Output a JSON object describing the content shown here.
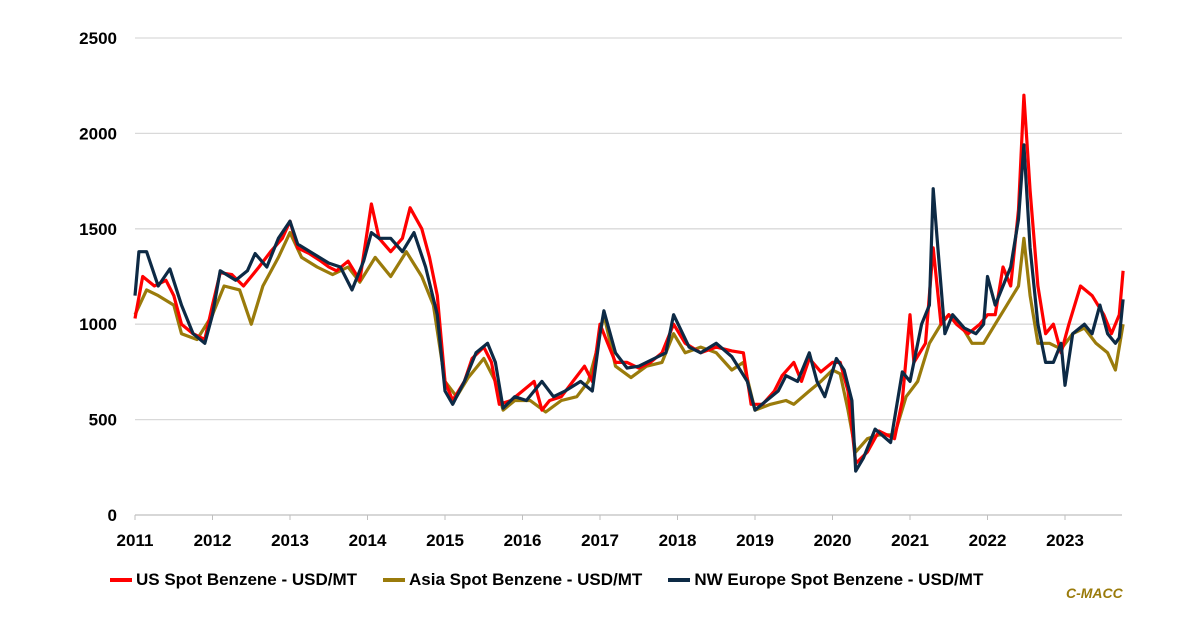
{
  "chart_data": {
    "type": "line",
    "title": "",
    "xlabel": "",
    "ylabel": "",
    "ylim": [
      0,
      2500
    ],
    "yticks": [
      0,
      500,
      1000,
      1500,
      2000,
      2500
    ],
    "xticks": [
      2011,
      2012,
      2013,
      2014,
      2015,
      2016,
      2017,
      2018,
      2019,
      2020,
      2021,
      2022,
      2023
    ],
    "grid": true,
    "legend_position": "bottom",
    "series": [
      {
        "name": "US Spot Benzene - USD/MT",
        "color": "#ff0000",
        "points": [
          [
            2011.0,
            1030
          ],
          [
            2011.1,
            1250
          ],
          [
            2011.25,
            1200
          ],
          [
            2011.4,
            1230
          ],
          [
            2011.5,
            1150
          ],
          [
            2011.6,
            1000
          ],
          [
            2011.75,
            950
          ],
          [
            2011.9,
            920
          ],
          [
            2012.0,
            1100
          ],
          [
            2012.1,
            1270
          ],
          [
            2012.25,
            1260
          ],
          [
            2012.4,
            1200
          ],
          [
            2012.5,
            1250
          ],
          [
            2012.6,
            1300
          ],
          [
            2012.75,
            1380
          ],
          [
            2012.9,
            1450
          ],
          [
            2013.0,
            1540
          ],
          [
            2013.1,
            1400
          ],
          [
            2013.25,
            1370
          ],
          [
            2013.4,
            1330
          ],
          [
            2013.5,
            1300
          ],
          [
            2013.6,
            1280
          ],
          [
            2013.75,
            1330
          ],
          [
            2013.9,
            1230
          ],
          [
            2014.05,
            1630
          ],
          [
            2014.15,
            1450
          ],
          [
            2014.3,
            1380
          ],
          [
            2014.45,
            1450
          ],
          [
            2014.55,
            1610
          ],
          [
            2014.7,
            1500
          ],
          [
            2014.8,
            1350
          ],
          [
            2014.9,
            1150
          ],
          [
            2015.0,
            700
          ],
          [
            2015.1,
            600
          ],
          [
            2015.25,
            700
          ],
          [
            2015.35,
            820
          ],
          [
            2015.5,
            880
          ],
          [
            2015.6,
            800
          ],
          [
            2015.7,
            580
          ],
          [
            2015.85,
            600
          ],
          [
            2016.0,
            650
          ],
          [
            2016.15,
            700
          ],
          [
            2016.25,
            550
          ],
          [
            2016.35,
            600
          ],
          [
            2016.5,
            620
          ],
          [
            2016.65,
            700
          ],
          [
            2016.8,
            780
          ],
          [
            2016.9,
            700
          ],
          [
            2017.0,
            1000
          ],
          [
            2017.1,
            900
          ],
          [
            2017.2,
            800
          ],
          [
            2017.35,
            800
          ],
          [
            2017.5,
            770
          ],
          [
            2017.65,
            800
          ],
          [
            2017.8,
            850
          ],
          [
            2017.95,
            1000
          ],
          [
            2018.1,
            900
          ],
          [
            2018.3,
            850
          ],
          [
            2018.5,
            880
          ],
          [
            2018.7,
            860
          ],
          [
            2018.85,
            850
          ],
          [
            2018.95,
            580
          ],
          [
            2019.1,
            580
          ],
          [
            2019.25,
            650
          ],
          [
            2019.35,
            730
          ],
          [
            2019.5,
            800
          ],
          [
            2019.6,
            700
          ],
          [
            2019.7,
            820
          ],
          [
            2019.85,
            750
          ],
          [
            2020.0,
            800
          ],
          [
            2020.1,
            800
          ],
          [
            2020.2,
            650
          ],
          [
            2020.3,
            270
          ],
          [
            2020.45,
            330
          ],
          [
            2020.6,
            440
          ],
          [
            2020.8,
            400
          ],
          [
            2020.9,
            600
          ],
          [
            2021.0,
            1050
          ],
          [
            2021.05,
            800
          ],
          [
            2021.2,
            900
          ],
          [
            2021.3,
            1400
          ],
          [
            2021.4,
            1000
          ],
          [
            2021.5,
            1050
          ],
          [
            2021.6,
            1000
          ],
          [
            2021.75,
            950
          ],
          [
            2021.9,
            1000
          ],
          [
            2022.0,
            1050
          ],
          [
            2022.1,
            1050
          ],
          [
            2022.2,
            1300
          ],
          [
            2022.3,
            1200
          ],
          [
            2022.4,
            1600
          ],
          [
            2022.47,
            2200
          ],
          [
            2022.55,
            1700
          ],
          [
            2022.65,
            1200
          ],
          [
            2022.75,
            950
          ],
          [
            2022.85,
            1000
          ],
          [
            2022.95,
            850
          ],
          [
            2023.05,
            1000
          ],
          [
            2023.2,
            1200
          ],
          [
            2023.35,
            1150
          ],
          [
            2023.5,
            1050
          ],
          [
            2023.6,
            950
          ],
          [
            2023.7,
            1050
          ],
          [
            2023.75,
            1280
          ]
        ]
      },
      {
        "name": "Asia Spot Benzene - USD/MT",
        "color": "#9a7b0b",
        "points": [
          [
            2011.0,
            1050
          ],
          [
            2011.15,
            1180
          ],
          [
            2011.3,
            1150
          ],
          [
            2011.5,
            1100
          ],
          [
            2011.6,
            950
          ],
          [
            2011.8,
            920
          ],
          [
            2012.0,
            1050
          ],
          [
            2012.15,
            1200
          ],
          [
            2012.35,
            1180
          ],
          [
            2012.5,
            1000
          ],
          [
            2012.65,
            1200
          ],
          [
            2012.85,
            1350
          ],
          [
            2013.0,
            1480
          ],
          [
            2013.15,
            1350
          ],
          [
            2013.35,
            1300
          ],
          [
            2013.55,
            1260
          ],
          [
            2013.75,
            1300
          ],
          [
            2013.9,
            1220
          ],
          [
            2014.1,
            1350
          ],
          [
            2014.3,
            1250
          ],
          [
            2014.5,
            1380
          ],
          [
            2014.7,
            1250
          ],
          [
            2014.85,
            1100
          ],
          [
            2015.0,
            700
          ],
          [
            2015.15,
            620
          ],
          [
            2015.3,
            720
          ],
          [
            2015.5,
            820
          ],
          [
            2015.65,
            700
          ],
          [
            2015.75,
            550
          ],
          [
            2015.9,
            600
          ],
          [
            2016.1,
            600
          ],
          [
            2016.3,
            540
          ],
          [
            2016.5,
            600
          ],
          [
            2016.7,
            620
          ],
          [
            2016.85,
            700
          ],
          [
            2016.95,
            850
          ],
          [
            2017.05,
            1050
          ],
          [
            2017.2,
            780
          ],
          [
            2017.4,
            720
          ],
          [
            2017.6,
            780
          ],
          [
            2017.8,
            800
          ],
          [
            2017.95,
            950
          ],
          [
            2018.1,
            850
          ],
          [
            2018.3,
            880
          ],
          [
            2018.5,
            850
          ],
          [
            2018.7,
            760
          ],
          [
            2018.85,
            800
          ],
          [
            2019.0,
            550
          ],
          [
            2019.2,
            580
          ],
          [
            2019.4,
            600
          ],
          [
            2019.5,
            580
          ],
          [
            2019.7,
            650
          ],
          [
            2019.85,
            700
          ],
          [
            2020.0,
            760
          ],
          [
            2020.1,
            740
          ],
          [
            2020.2,
            550
          ],
          [
            2020.3,
            330
          ],
          [
            2020.45,
            400
          ],
          [
            2020.6,
            420
          ],
          [
            2020.8,
            420
          ],
          [
            2020.95,
            620
          ],
          [
            2021.1,
            700
          ],
          [
            2021.25,
            900
          ],
          [
            2021.4,
            1000
          ],
          [
            2021.5,
            1050
          ],
          [
            2021.65,
            1000
          ],
          [
            2021.8,
            900
          ],
          [
            2021.95,
            900
          ],
          [
            2022.1,
            1000
          ],
          [
            2022.25,
            1100
          ],
          [
            2022.4,
            1200
          ],
          [
            2022.47,
            1450
          ],
          [
            2022.55,
            1150
          ],
          [
            2022.65,
            900
          ],
          [
            2022.8,
            900
          ],
          [
            2022.95,
            870
          ],
          [
            2023.1,
            950
          ],
          [
            2023.25,
            980
          ],
          [
            2023.4,
            900
          ],
          [
            2023.55,
            850
          ],
          [
            2023.65,
            760
          ],
          [
            2023.75,
            1000
          ]
        ]
      },
      {
        "name": "NW Europe Spot Benzene - USD/MT",
        "color": "#0d2a45",
        "points": [
          [
            2011.0,
            1150
          ],
          [
            2011.05,
            1380
          ],
          [
            2011.15,
            1380
          ],
          [
            2011.3,
            1200
          ],
          [
            2011.45,
            1290
          ],
          [
            2011.6,
            1100
          ],
          [
            2011.75,
            950
          ],
          [
            2011.9,
            900
          ],
          [
            2012.0,
            1050
          ],
          [
            2012.1,
            1280
          ],
          [
            2012.3,
            1230
          ],
          [
            2012.45,
            1280
          ],
          [
            2012.55,
            1370
          ],
          [
            2012.7,
            1300
          ],
          [
            2012.85,
            1450
          ],
          [
            2013.0,
            1540
          ],
          [
            2013.1,
            1420
          ],
          [
            2013.3,
            1370
          ],
          [
            2013.5,
            1320
          ],
          [
            2013.65,
            1300
          ],
          [
            2013.8,
            1180
          ],
          [
            2013.95,
            1330
          ],
          [
            2014.05,
            1480
          ],
          [
            2014.15,
            1450
          ],
          [
            2014.3,
            1450
          ],
          [
            2014.45,
            1380
          ],
          [
            2014.6,
            1480
          ],
          [
            2014.75,
            1300
          ],
          [
            2014.9,
            1050
          ],
          [
            2015.0,
            650
          ],
          [
            2015.1,
            580
          ],
          [
            2015.25,
            700
          ],
          [
            2015.4,
            850
          ],
          [
            2015.55,
            900
          ],
          [
            2015.65,
            800
          ],
          [
            2015.75,
            560
          ],
          [
            2015.9,
            620
          ],
          [
            2016.05,
            600
          ],
          [
            2016.25,
            700
          ],
          [
            2016.4,
            620
          ],
          [
            2016.55,
            650
          ],
          [
            2016.75,
            700
          ],
          [
            2016.9,
            650
          ],
          [
            2017.0,
            950
          ],
          [
            2017.05,
            1070
          ],
          [
            2017.2,
            850
          ],
          [
            2017.35,
            770
          ],
          [
            2017.5,
            780
          ],
          [
            2017.7,
            820
          ],
          [
            2017.85,
            850
          ],
          [
            2017.95,
            1050
          ],
          [
            2018.15,
            880
          ],
          [
            2018.3,
            850
          ],
          [
            2018.5,
            900
          ],
          [
            2018.7,
            830
          ],
          [
            2018.9,
            700
          ],
          [
            2019.0,
            550
          ],
          [
            2019.15,
            600
          ],
          [
            2019.3,
            650
          ],
          [
            2019.4,
            730
          ],
          [
            2019.55,
            700
          ],
          [
            2019.7,
            850
          ],
          [
            2019.8,
            700
          ],
          [
            2019.9,
            620
          ],
          [
            2020.05,
            820
          ],
          [
            2020.15,
            760
          ],
          [
            2020.25,
            600
          ],
          [
            2020.3,
            230
          ],
          [
            2020.4,
            300
          ],
          [
            2020.55,
            450
          ],
          [
            2020.75,
            380
          ],
          [
            2020.9,
            750
          ],
          [
            2021.0,
            700
          ],
          [
            2021.15,
            1000
          ],
          [
            2021.25,
            1100
          ],
          [
            2021.3,
            1710
          ],
          [
            2021.35,
            1450
          ],
          [
            2021.45,
            950
          ],
          [
            2021.55,
            1050
          ],
          [
            2021.7,
            980
          ],
          [
            2021.85,
            950
          ],
          [
            2021.95,
            1000
          ],
          [
            2022.0,
            1250
          ],
          [
            2022.1,
            1100
          ],
          [
            2022.2,
            1200
          ],
          [
            2022.3,
            1300
          ],
          [
            2022.4,
            1550
          ],
          [
            2022.47,
            1940
          ],
          [
            2022.55,
            1400
          ],
          [
            2022.65,
            1000
          ],
          [
            2022.75,
            800
          ],
          [
            2022.85,
            800
          ],
          [
            2022.95,
            900
          ],
          [
            2023.0,
            680
          ],
          [
            2023.1,
            950
          ],
          [
            2023.25,
            1000
          ],
          [
            2023.35,
            950
          ],
          [
            2023.45,
            1100
          ],
          [
            2023.55,
            950
          ],
          [
            2023.65,
            900
          ],
          [
            2023.7,
            930
          ],
          [
            2023.75,
            1130
          ]
        ]
      }
    ],
    "source": "C-MACC"
  }
}
